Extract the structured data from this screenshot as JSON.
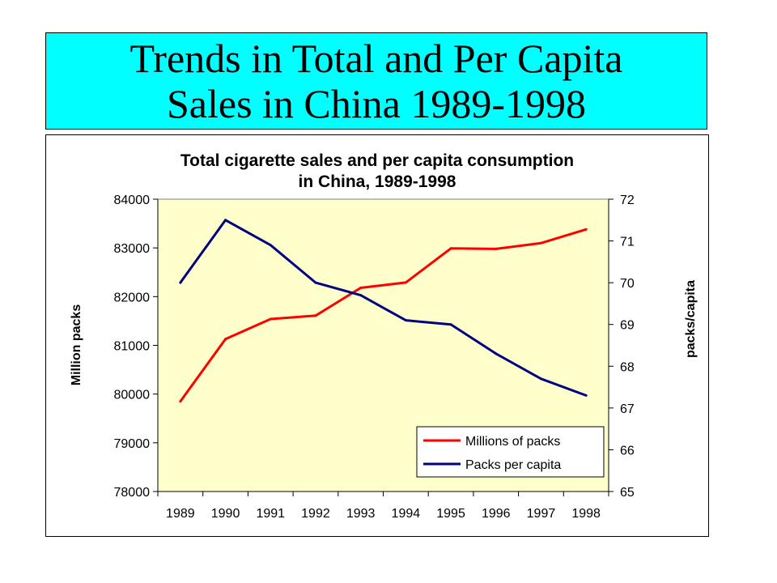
{
  "slide": {
    "title_line1": "Trends in Total and Per Capita",
    "title_line2": "Sales in China 1989-1998"
  },
  "chart_data": {
    "type": "line",
    "title_line1": "Total cigarette sales and per capita consumption",
    "title_line2": "in China, 1989-1998",
    "categories": [
      "1989",
      "1990",
      "1991",
      "1992",
      "1993",
      "1994",
      "1995",
      "1996",
      "1997",
      "1998"
    ],
    "y_left": {
      "label": "Million packs",
      "range": [
        78000,
        84000
      ],
      "ticks": [
        78000,
        79000,
        80000,
        81000,
        82000,
        83000,
        84000
      ]
    },
    "y_right": {
      "label": "packs/capita",
      "range": [
        65,
        72
      ],
      "ticks": [
        65,
        66,
        67,
        68,
        69,
        70,
        71,
        72
      ]
    },
    "plot_background": "#ffffcc",
    "grid": false,
    "legend_placement": "bottom-right",
    "series": [
      {
        "name": "Millions of packs",
        "axis": "left",
        "color": "#ff0000",
        "values": [
          79850,
          81130,
          81540,
          81610,
          82180,
          82290,
          82990,
          82980,
          83100,
          83380
        ]
      },
      {
        "name": "Packs per capita",
        "axis": "right",
        "color": "#000080",
        "values": [
          70.0,
          71.5,
          70.9,
          70.0,
          69.7,
          69.1,
          69.0,
          68.3,
          67.7,
          67.3
        ]
      }
    ]
  }
}
